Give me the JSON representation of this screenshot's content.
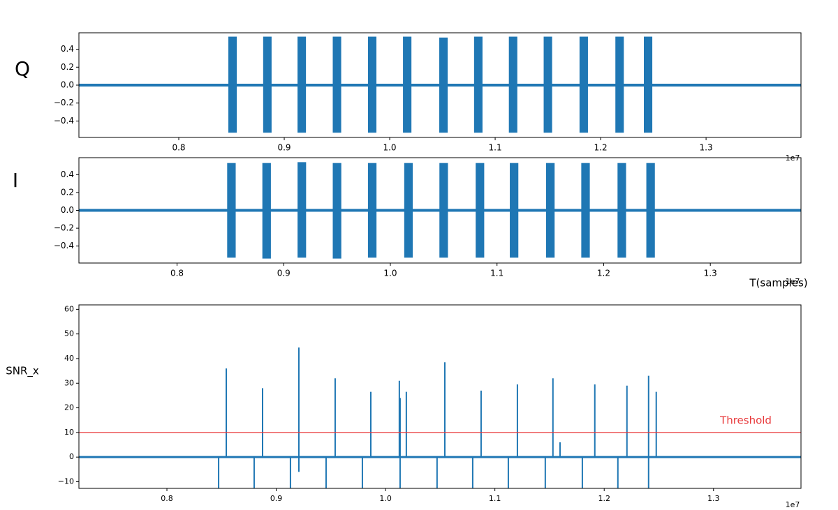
{
  "chart_data": [
    {
      "type": "burst",
      "ylabel": "Q",
      "offset_label": "1e7",
      "color": "#1f77b4",
      "x": [
        0.851,
        0.884,
        0.9166,
        0.95,
        0.9834,
        1.0166,
        1.051,
        1.084,
        1.117,
        1.15,
        1.184,
        1.218,
        1.245
      ],
      "values": [
        0.54,
        0.54,
        0.54,
        0.54,
        0.54,
        0.54,
        0.53,
        0.54,
        0.54,
        0.54,
        0.54,
        0.54,
        0.54
      ],
      "low_values": [
        -0.53,
        -0.53,
        -0.53,
        -0.53,
        -0.53,
        -0.53,
        -0.53,
        -0.53,
        -0.53,
        -0.53,
        -0.53,
        -0.53,
        -0.53
      ],
      "burst_width": 0.008,
      "xlim": [
        0.7053,
        1.39
      ],
      "ylim": [
        -0.583,
        0.583
      ],
      "xticks": [
        0.8,
        0.9,
        {
          "value": 1,
          "label": "1.0"
        },
        1.1,
        1.2,
        1.3
      ],
      "yticks": [
        0.4,
        0.2,
        {
          "value": 0,
          "label": "0.0"
        },
        {
          "value": -0.2,
          "label": "−0.2"
        },
        {
          "value": -0.4,
          "label": "−0.4"
        }
      ]
    },
    {
      "type": "burst",
      "ylabel": "I",
      "xlabel": "T(samples)",
      "offset_label": "1e7",
      "color": "#1f77b4",
      "x": [
        0.851,
        0.884,
        0.917,
        0.95,
        0.983,
        1.017,
        1.05,
        1.084,
        1.116,
        1.15,
        1.183,
        1.217,
        1.244
      ],
      "values": [
        0.53,
        0.53,
        0.54,
        0.53,
        0.53,
        0.53,
        0.53,
        0.53,
        0.53,
        0.53,
        0.53,
        0.53,
        0.53
      ],
      "low_values": [
        -0.53,
        -0.54,
        -0.53,
        -0.54,
        -0.53,
        -0.53,
        -0.53,
        -0.53,
        -0.53,
        -0.53,
        -0.53,
        -0.53,
        -0.53
      ],
      "burst_width": 0.008,
      "xlim": [
        0.708,
        1.385
      ],
      "ylim": [
        -0.59,
        0.59
      ],
      "xticks": [
        0.8,
        0.9,
        {
          "value": 1,
          "label": "1.0"
        },
        1.1,
        1.2,
        1.3
      ],
      "yticks": [
        0.4,
        0.2,
        {
          "value": 0,
          "label": "0.0"
        },
        {
          "value": -0.2,
          "label": "−0.2"
        },
        {
          "value": -0.4,
          "label": "−0.4"
        }
      ]
    },
    {
      "type": "spike",
      "ylabel": "SNR_x",
      "offset_label": "1e7",
      "color": "#1f77b4",
      "x": [
        0.8473,
        0.8543,
        0.8798,
        0.8875,
        0.913,
        0.9207,
        0.9207,
        0.9456,
        0.9539,
        0.9788,
        0.9865,
        1.0126,
        1.0133,
        1.0133,
        1.019,
        1.0471,
        1.0542,
        1.0797,
        1.0874,
        1.1123,
        1.1206,
        1.1461,
        1.1531,
        1.1596,
        1.18,
        1.1914,
        1.2125,
        1.2208,
        1.2406,
        1.2406,
        1.2476
      ],
      "values": [
        -12.7,
        36,
        -12.7,
        28,
        -12.7,
        44.5,
        -6,
        -12.7,
        32,
        -12.7,
        26.5,
        31,
        24,
        -12.7,
        26.5,
        -12.7,
        38.5,
        -12.7,
        27,
        -12.7,
        29.5,
        -12.7,
        32,
        6,
        -12.7,
        29.5,
        -12.7,
        29,
        33,
        -12.7,
        26.5
      ],
      "threshold": {
        "value": 10,
        "label": "Threshold",
        "color": "#e8383a"
      },
      "xlim": [
        0.7195,
        1.38
      ],
      "ylim": [
        -12.7,
        61.8
      ],
      "xticks": [
        0.8,
        0.9,
        {
          "value": 1,
          "label": "1.0"
        },
        1.1,
        1.2,
        1.3
      ],
      "yticks": [
        60,
        50,
        40,
        30,
        20,
        10,
        0,
        {
          "value": -10,
          "label": "−10"
        }
      ]
    }
  ]
}
